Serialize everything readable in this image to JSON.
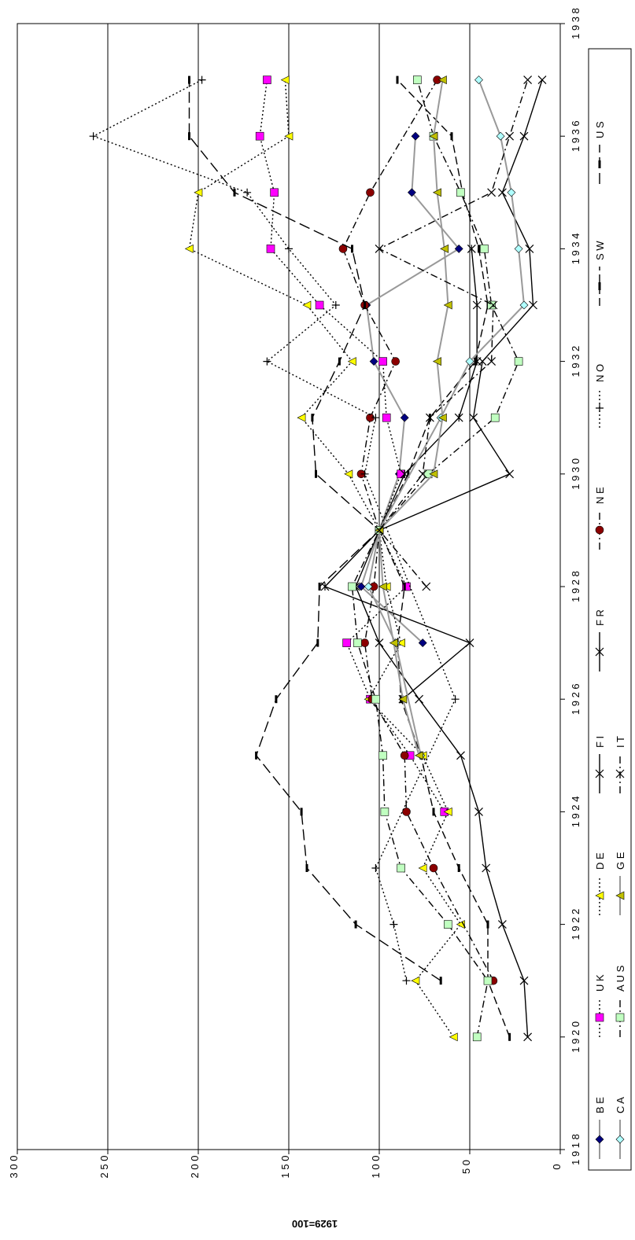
{
  "chart_data": {
    "type": "line",
    "title": "",
    "ylabel": "1929=100",
    "xlabel": "",
    "xlim": [
      1918,
      1938
    ],
    "ylim": [
      0,
      300
    ],
    "x_ticks": [
      1918,
      1920,
      1922,
      1924,
      1926,
      1928,
      1930,
      1932,
      1934,
      1936,
      1938
    ],
    "y_ticks": [
      0,
      50,
      100,
      150,
      200,
      250,
      300
    ],
    "grid": "horizontal",
    "legend_position": "right",
    "series": [
      {
        "name": "BE",
        "color": "#000080",
        "marker": "diamond",
        "dash": "solid-grey",
        "x": [
          1927,
          1928,
          1929,
          1930,
          1931,
          1932,
          1933,
          1934,
          1935,
          1936
        ],
        "y": [
          76,
          110,
          100,
          89,
          86,
          103,
          107,
          56,
          82,
          80
        ]
      },
      {
        "name": "UK",
        "color": "#ff00ff",
        "marker": "square",
        "dash": "dot",
        "x": [
          1924,
          1925,
          1926,
          1927,
          1928,
          1929,
          1930,
          1931,
          1932,
          1933,
          1934,
          1935,
          1936,
          1937
        ],
        "y": [
          64,
          83,
          105,
          118,
          85,
          100,
          88,
          96,
          98,
          133,
          160,
          158,
          166,
          162
        ]
      },
      {
        "name": "DE",
        "color": "#ffff00",
        "marker": "triangle",
        "dash": "dot",
        "x": [
          1920,
          1921,
          1922,
          1923,
          1924,
          1925,
          1926,
          1927,
          1928,
          1929,
          1930,
          1931,
          1932,
          1933,
          1934,
          1935,
          1936,
          1937
        ],
        "y": [
          59,
          80,
          55,
          76,
          62,
          76,
          106,
          88,
          96,
          100,
          117,
          143,
          115,
          140,
          205,
          200,
          150,
          152
        ]
      },
      {
        "name": "FI",
        "color": "#000000",
        "marker": "x",
        "dash": "solid",
        "x": [
          1920,
          1921,
          1922,
          1923,
          1924,
          1925,
          1926,
          1927,
          1928,
          1929,
          1930,
          1931,
          1932,
          1933,
          1934,
          1935,
          1936,
          1937
        ],
        "y": [
          18,
          20,
          32,
          41,
          45,
          55,
          78,
          100,
          113,
          100,
          28,
          48,
          43,
          15,
          17,
          32,
          20,
          10
        ]
      },
      {
        "name": "FR",
        "color": "#000000",
        "marker": "star",
        "dash": "solid",
        "x": [
          1926,
          1927,
          1928,
          1929,
          1930,
          1931,
          1932,
          1933,
          1934
        ],
        "y": [
          87,
          50,
          130,
          100,
          86,
          56,
          46,
          46,
          49
        ]
      },
      {
        "name": "NE",
        "color": "#8b0000",
        "marker": "circle",
        "dash": "dashdot",
        "x": [
          1921,
          1923,
          1924,
          1925,
          1926,
          1927,
          1928,
          1929,
          1930,
          1931,
          1932,
          1933,
          1934,
          1935,
          1937
        ],
        "y": [
          37,
          70,
          85,
          86,
          104,
          108,
          103,
          100,
          110,
          105,
          91,
          108,
          120,
          105,
          68
        ]
      },
      {
        "name": "NO",
        "color": "#000000",
        "marker": "plus",
        "dash": "dot",
        "x": [
          1921,
          1922,
          1923,
          1926,
          1930,
          1931,
          1932,
          1933,
          1934,
          1935,
          1936,
          1937
        ],
        "y": [
          85,
          92,
          102,
          58,
          108,
          102,
          162,
          124,
          150,
          173,
          258,
          198
        ]
      },
      {
        "name": "SW",
        "color": "#000000",
        "marker": "bar",
        "dash": "dash",
        "x": [
          1920,
          1921,
          1922,
          1923,
          1924,
          1925,
          1926,
          1927,
          1928,
          1929,
          1930,
          1931,
          1932,
          1933,
          1934,
          1935,
          1936,
          1937
        ],
        "y": [
          28,
          40,
          40,
          56,
          70,
          77,
          88,
          90,
          86,
          100,
          84,
          72,
          47,
          40,
          45,
          54,
          60,
          90
        ]
      },
      {
        "name": "US",
        "color": "#000000",
        "marker": "bar",
        "dash": "longdash",
        "x": [
          1921,
          1922,
          1923,
          1924,
          1925,
          1926,
          1927,
          1928,
          1929,
          1930,
          1931,
          1932,
          1933,
          1934,
          1935,
          1936,
          1937
        ],
        "y": [
          66,
          113,
          140,
          143,
          168,
          157,
          134,
          133,
          100,
          135,
          137,
          122,
          108,
          115,
          180,
          205,
          205
        ]
      },
      {
        "name": "CA",
        "color": "#b0ffff",
        "marker": "diamond",
        "dash": "solid-grey",
        "x": [
          1925,
          1927,
          1928,
          1929,
          1931,
          1932,
          1933,
          1934,
          1935,
          1936,
          1937
        ],
        "y": [
          77,
          91,
          106,
          100,
          66,
          50,
          20,
          23,
          27,
          33,
          45
        ]
      },
      {
        "name": "AUS",
        "color": "#c0ffc0",
        "marker": "square",
        "dash": "dashdot",
        "x": [
          1920,
          1921,
          1922,
          1923,
          1924,
          1925,
          1926,
          1927,
          1928,
          1929,
          1930,
          1931,
          1932,
          1933,
          1934,
          1935,
          1936,
          1937
        ],
        "y": [
          46,
          40,
          62,
          88,
          97,
          98,
          102,
          112,
          115,
          100,
          73,
          36,
          23,
          38,
          42,
          55,
          70,
          79
        ]
      },
      {
        "name": "GE",
        "color": "#c0c000",
        "marker": "triangle",
        "dash": "solid-grey",
        "x": [
          1925,
          1926,
          1927,
          1928,
          1929,
          1930,
          1931,
          1932,
          1933,
          1934,
          1935,
          1936,
          1937
        ],
        "y": [
          78,
          87,
          92,
          98,
          100,
          70,
          65,
          68,
          62,
          64,
          68,
          70,
          65
        ]
      },
      {
        "name": "IT",
        "color": "#000000",
        "marker": "x",
        "dash": "dashdot",
        "x": [
          1928,
          1929,
          1930,
          1931,
          1932,
          1933,
          1934,
          1935,
          1936,
          1937
        ],
        "y": [
          74,
          100,
          76,
          72,
          38,
          37,
          100,
          38,
          28,
          18
        ]
      }
    ]
  }
}
